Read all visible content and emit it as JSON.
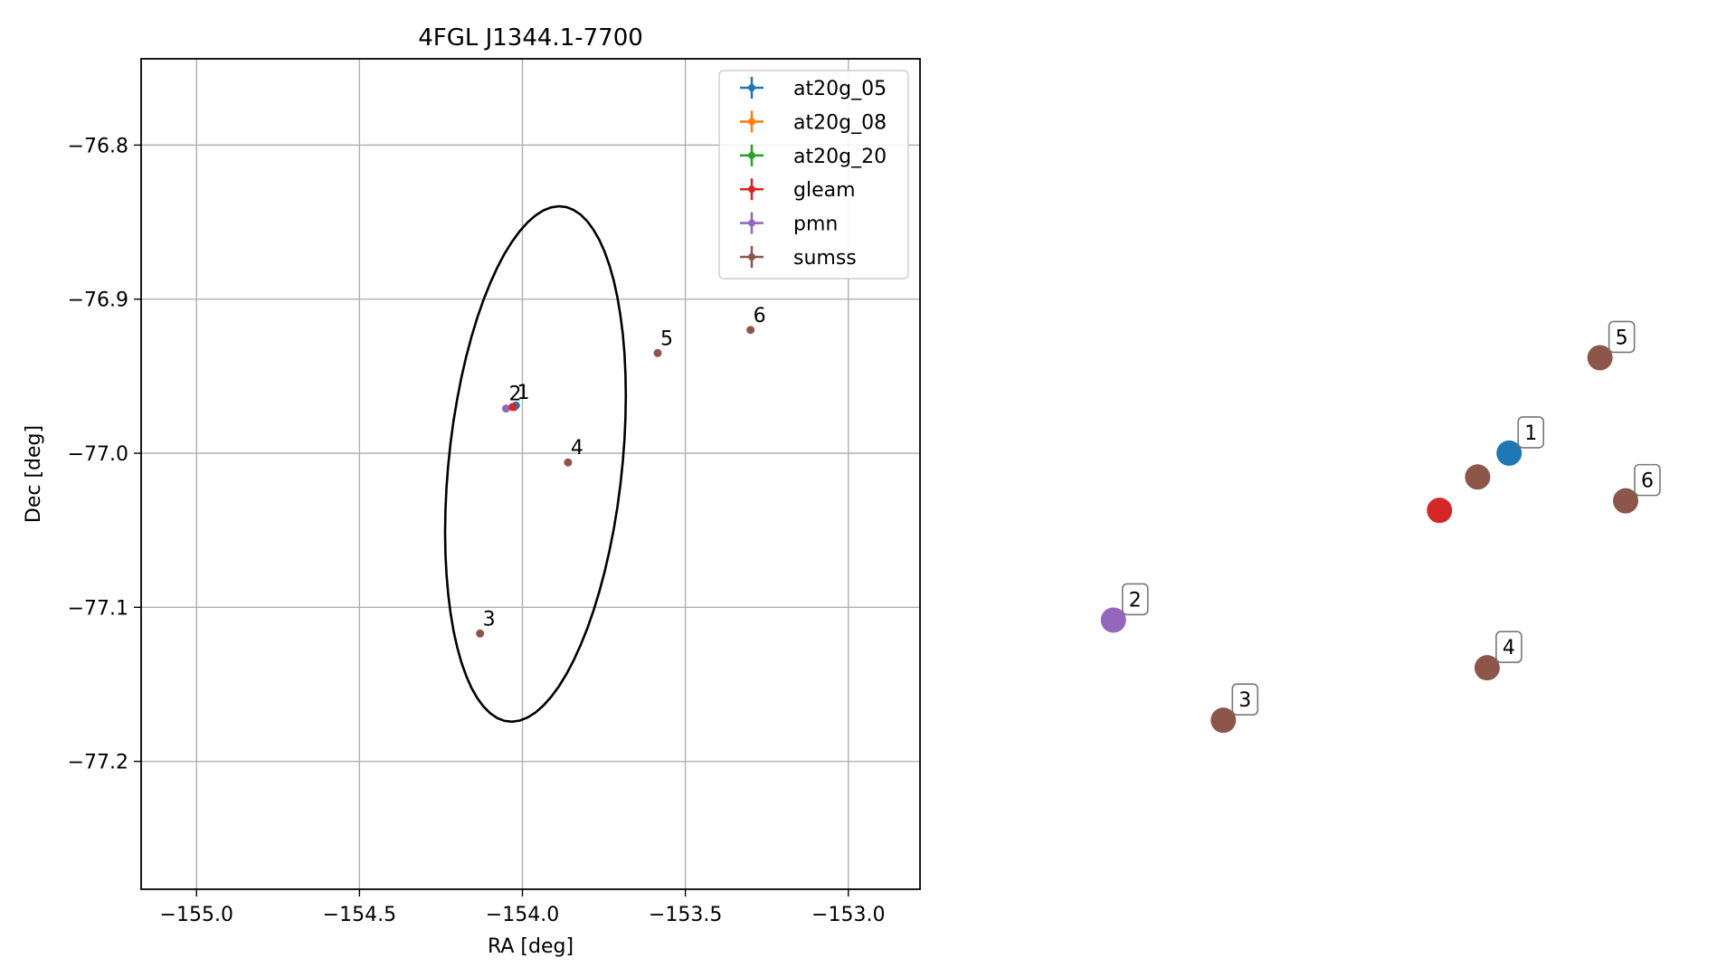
{
  "colors": {
    "at20g_05": "#1f77b4",
    "at20g_08": "#ff7f0e",
    "at20g_20": "#2ca02c",
    "gleam": "#d62728",
    "pmn": "#9467bd",
    "sumss": "#8c564b",
    "ellipse": "#000000",
    "grid": "#b0b0b0"
  },
  "chart_data": [
    {
      "type": "scatter",
      "title": "4FGL J1344.1-7700",
      "xlabel": "RA [deg]",
      "ylabel": "Dec [deg]",
      "xlim": [
        -155.17,
        -152.78
      ],
      "ylim": [
        -77.283,
        -76.744
      ],
      "grid": true,
      "legend_placement": "top-right",
      "xticks": [
        -155.0,
        -154.5,
        -154.0,
        -153.5,
        -153.0
      ],
      "xtick_labels": [
        "−155.0",
        "−154.5",
        "−154.0",
        "−153.5",
        "−153.0"
      ],
      "yticks": [
        -76.8,
        -76.9,
        -77.0,
        -77.1,
        -77.2
      ],
      "ytick_labels": [
        "−76.8",
        "−76.9",
        "−77.0",
        "−77.1",
        "−77.2"
      ],
      "legend": [
        "at20g_05",
        "at20g_08",
        "at20g_20",
        "gleam",
        "pmn",
        "sumss"
      ],
      "ellipse": {
        "center": [
          -153.96,
          -77.007
        ],
        "semi_axes": [
          0.79,
          0.153
        ],
        "angle_deg": 27
      },
      "series": [
        {
          "name": "sumss",
          "points": [
            {
              "label": "1",
              "x": -154.025,
              "y": -76.97
            },
            {
              "label": "3",
              "x": -154.13,
              "y": -77.117
            },
            {
              "label": "4",
              "x": -153.86,
              "y": -77.006
            },
            {
              "label": "5",
              "x": -153.585,
              "y": -76.935
            },
            {
              "label": "6",
              "x": -153.3,
              "y": -76.92
            }
          ]
        },
        {
          "name": "pmn",
          "points": [
            {
              "label": "2",
              "x": -154.05,
              "y": -76.971
            }
          ]
        },
        {
          "name": "at20g_05",
          "points": [
            {
              "label": "",
              "x": -154.02,
              "y": -76.969
            }
          ]
        },
        {
          "name": "gleam",
          "points": [
            {
              "label": "",
              "x": -154.03,
              "y": -76.97
            }
          ]
        }
      ]
    },
    {
      "type": "scatter",
      "title": "",
      "zoom_of": "4FGL J1344.1-7700",
      "xlim": [
        -154.09,
        -153.99
      ],
      "ylim": [
        -76.9765,
        -76.9655
      ],
      "grid": false,
      "series": [
        {
          "name": "at20g_05",
          "points": [
            {
              "label": "1",
              "x": -154.018,
              "y": -76.9695
            }
          ]
        },
        {
          "name": "sumss",
          "points": [
            {
              "label": "",
              "x": -154.0223,
              "y": -76.97
            },
            {
              "label": "3",
              "x": -154.057,
              "y": -76.9751
            },
            {
              "label": "4",
              "x": -154.021,
              "y": -76.974
            },
            {
              "label": "5",
              "x": -154.0056,
              "y": -76.9675
            },
            {
              "label": "6",
              "x": -154.0021,
              "y": -76.9705
            }
          ]
        },
        {
          "name": "gleam",
          "points": [
            {
              "label": "",
              "x": -154.0275,
              "y": -76.9707
            }
          ]
        },
        {
          "name": "pmn",
          "points": [
            {
              "label": "2",
              "x": -154.072,
              "y": -76.973
            }
          ]
        }
      ]
    }
  ]
}
